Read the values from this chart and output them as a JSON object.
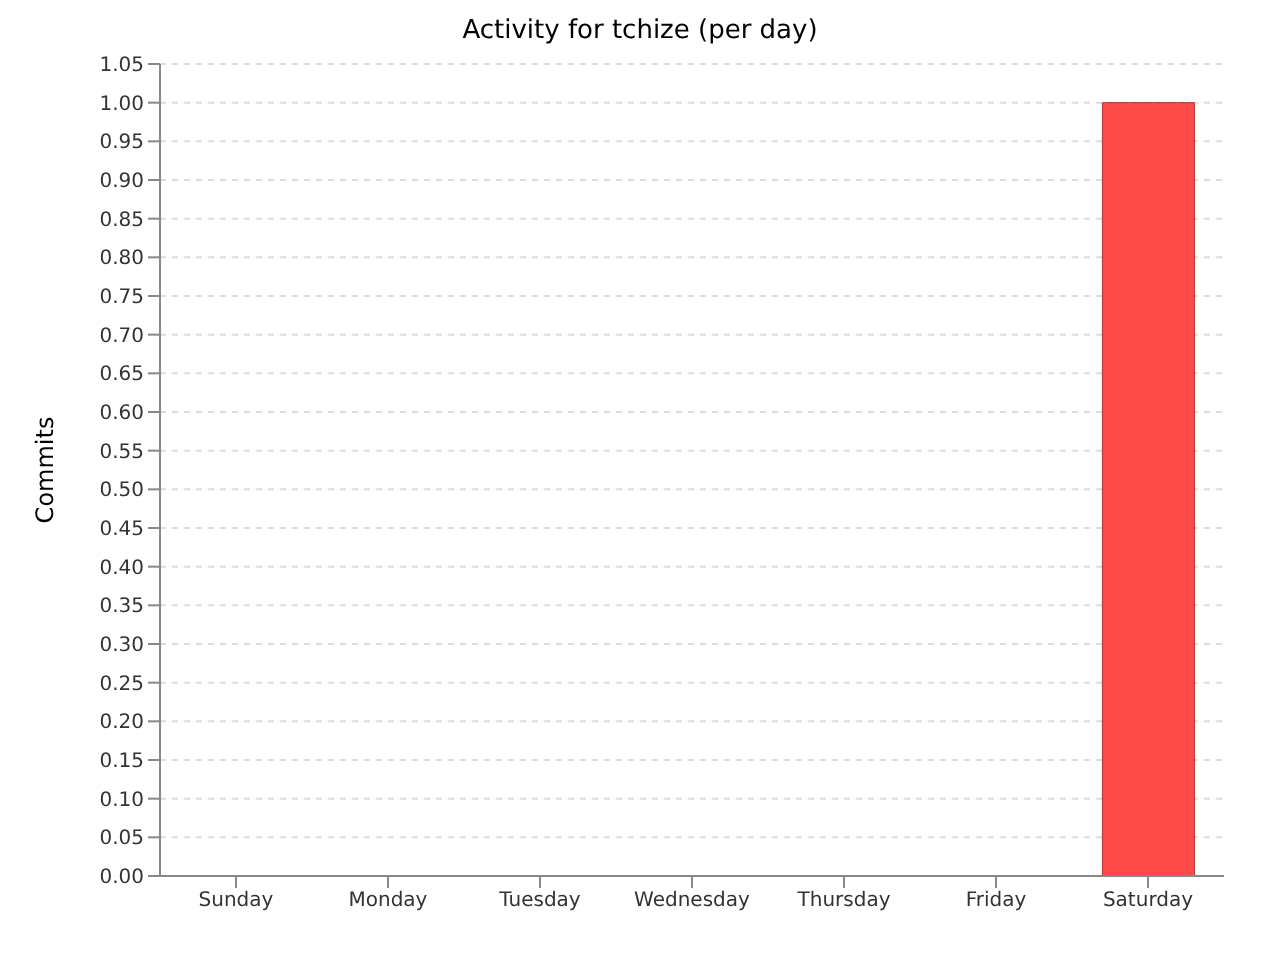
{
  "chart_data": {
    "type": "bar",
    "title": "Activity for tchize (per day)",
    "ylabel": "Commits",
    "categories": [
      "Sunday",
      "Monday",
      "Tuesday",
      "Wednesday",
      "Thursday",
      "Friday",
      "Saturday"
    ],
    "values": [
      0,
      0,
      0,
      0,
      0,
      0,
      1
    ],
    "color": "#ff4040",
    "ylim": [
      0,
      1.05
    ],
    "yticks": [
      {
        "value": 0,
        "label": "0.00"
      },
      {
        "value": 0.05,
        "label": "0.05"
      },
      {
        "value": 0.1,
        "label": "0.10"
      },
      {
        "value": 0.15,
        "label": "0.15"
      },
      {
        "value": 0.2,
        "label": "0.20"
      },
      {
        "value": 0.25,
        "label": "0.25"
      },
      {
        "value": 0.3,
        "label": "0.30"
      },
      {
        "value": 0.35,
        "label": "0.35"
      },
      {
        "value": 0.4,
        "label": "0.40"
      },
      {
        "value": 0.45,
        "label": "0.45"
      },
      {
        "value": 0.5,
        "label": "0.50"
      },
      {
        "value": 0.55,
        "label": "0.55"
      },
      {
        "value": 0.6,
        "label": "0.60"
      },
      {
        "value": 0.65,
        "label": "0.65"
      },
      {
        "value": 0.7,
        "label": "0.70"
      },
      {
        "value": 0.75,
        "label": "0.75"
      },
      {
        "value": 0.8,
        "label": "0.80"
      },
      {
        "value": 0.85,
        "label": "0.85"
      },
      {
        "value": 0.9,
        "label": "0.90"
      },
      {
        "value": 0.95,
        "label": "0.95"
      },
      {
        "value": 1,
        "label": "1.00"
      },
      {
        "value": 1.05,
        "label": "1.05"
      }
    ],
    "grid": "y"
  }
}
